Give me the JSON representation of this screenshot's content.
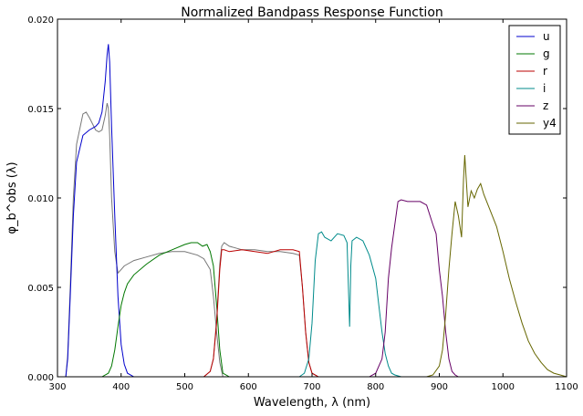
{
  "chart_data": {
    "type": "line",
    "title": "Normalized Bandpass Response Function",
    "xlabel": "Wavelength, λ (nm)",
    "ylabel": "φ_b^obs (λ)",
    "xlim": [
      300,
      1100
    ],
    "ylim": [
      0,
      0.02
    ],
    "x_ticks": [
      "300",
      "400",
      "500",
      "600",
      "700",
      "800",
      "900",
      "1000",
      "1100"
    ],
    "y_ticks": [
      "0.000",
      "0.005",
      "0.010",
      "0.015",
      "0.020"
    ],
    "grid": false,
    "legend_position": "top-right",
    "series": [
      {
        "name": "u",
        "color": "#0000cc",
        "x": [
          300,
          313,
          316,
          320,
          325,
          330,
          340,
          350,
          360,
          365,
          370,
          375,
          378,
          380,
          382,
          385,
          390,
          395,
          400,
          405,
          410,
          420,
          430
        ],
        "y": [
          0,
          0,
          0.001,
          0.0045,
          0.009,
          0.012,
          0.0135,
          0.0138,
          0.014,
          0.0142,
          0.0148,
          0.0165,
          0.018,
          0.0186,
          0.0176,
          0.014,
          0.009,
          0.0045,
          0.0018,
          0.0007,
          0.0002,
          0,
          0
        ]
      },
      {
        "name": "g",
        "color": "#007700",
        "x": [
          370,
          380,
          385,
          390,
          395,
          400,
          405,
          410,
          420,
          440,
          460,
          480,
          500,
          510,
          520,
          528,
          535,
          540,
          545,
          550,
          555,
          560,
          570
        ],
        "y": [
          0,
          0.0002,
          0.0006,
          0.0015,
          0.0028,
          0.004,
          0.0047,
          0.0052,
          0.0057,
          0.0063,
          0.0068,
          0.0071,
          0.0074,
          0.0075,
          0.0075,
          0.0073,
          0.0074,
          0.007,
          0.0062,
          0.004,
          0.0015,
          0.0002,
          0
        ]
      },
      {
        "name": "r",
        "color": "#bb0000",
        "x": [
          530,
          540,
          545,
          550,
          555,
          558,
          562,
          570,
          590,
          610,
          630,
          650,
          670,
          680,
          685,
          690,
          695,
          700,
          710
        ],
        "y": [
          0,
          0.0003,
          0.001,
          0.003,
          0.006,
          0.0071,
          0.0071,
          0.007,
          0.0071,
          0.007,
          0.0069,
          0.0071,
          0.0071,
          0.007,
          0.005,
          0.0025,
          0.0008,
          0.0002,
          0
        ],
        "y_grey": [
          0,
          0.0003,
          0.001,
          0.0032,
          0.0063,
          0.0073,
          0.0075,
          0.0073,
          0.0071,
          0.0071,
          0.007,
          0.007,
          0.0069,
          0.0068,
          0.005,
          0.0025,
          0.0008,
          0.0002,
          0
        ]
      },
      {
        "name": "i",
        "color": "#008b8b",
        "x": [
          680,
          688,
          695,
          700,
          705,
          710,
          715,
          720,
          730,
          740,
          750,
          755,
          758,
          759,
          760,
          761,
          763,
          770,
          780,
          790,
          800,
          805,
          810,
          815,
          820,
          825,
          830,
          840
        ],
        "y": [
          0,
          0.0002,
          0.001,
          0.003,
          0.0065,
          0.008,
          0.0081,
          0.0078,
          0.0076,
          0.008,
          0.0079,
          0.0075,
          0.004,
          0.0028,
          0.0042,
          0.0062,
          0.0076,
          0.0078,
          0.0076,
          0.0068,
          0.0055,
          0.004,
          0.0025,
          0.0013,
          0.0006,
          0.0002,
          0.0001,
          0
        ]
      },
      {
        "name": "z",
        "color": "#660066",
        "x": [
          790,
          800,
          810,
          815,
          820,
          825,
          830,
          835,
          840,
          850,
          860,
          870,
          880,
          890,
          895,
          900,
          905,
          910,
          915,
          920,
          925,
          930
        ],
        "y": [
          0,
          0.0002,
          0.001,
          0.0025,
          0.0055,
          0.0072,
          0.0085,
          0.0098,
          0.0099,
          0.0098,
          0.0098,
          0.0098,
          0.0096,
          0.0085,
          0.008,
          0.006,
          0.0045,
          0.0025,
          0.001,
          0.0003,
          0.0001,
          0
        ]
      },
      {
        "name": "y4",
        "color": "#666600",
        "x": [
          880,
          890,
          900,
          905,
          910,
          915,
          920,
          925,
          930,
          935,
          938,
          940,
          945,
          950,
          955,
          960,
          965,
          970,
          980,
          990,
          1000,
          1010,
          1020,
          1030,
          1040,
          1050,
          1060,
          1070,
          1080,
          1090,
          1100
        ],
        "y": [
          0,
          0.0001,
          0.0006,
          0.0015,
          0.0035,
          0.006,
          0.008,
          0.0098,
          0.009,
          0.0078,
          0.011,
          0.0124,
          0.0095,
          0.0104,
          0.01,
          0.0105,
          0.0108,
          0.0102,
          0.0093,
          0.0084,
          0.007,
          0.0055,
          0.0042,
          0.003,
          0.002,
          0.0013,
          0.0008,
          0.0004,
          0.0002,
          0.0001,
          0
        ]
      },
      {
        "name": "",
        "color": "#777777",
        "x": [
          300,
          313,
          316,
          320,
          325,
          330,
          340,
          345,
          350,
          360,
          365,
          370,
          375,
          378,
          380,
          382,
          385,
          390,
          395,
          400,
          405,
          410,
          420,
          440,
          460,
          480,
          500,
          520,
          530,
          540,
          545,
          550,
          555,
          560
        ],
        "y": [
          0,
          0,
          0.0012,
          0.005,
          0.01,
          0.013,
          0.0147,
          0.0148,
          0.0145,
          0.0138,
          0.0137,
          0.0138,
          0.0146,
          0.0153,
          0.015,
          0.0135,
          0.01,
          0.007,
          0.0058,
          0.006,
          0.0062,
          0.0063,
          0.0065,
          0.0067,
          0.0069,
          0.007,
          0.007,
          0.0068,
          0.0066,
          0.006,
          0.0045,
          0.0025,
          0.0008,
          0
        ]
      }
    ]
  }
}
